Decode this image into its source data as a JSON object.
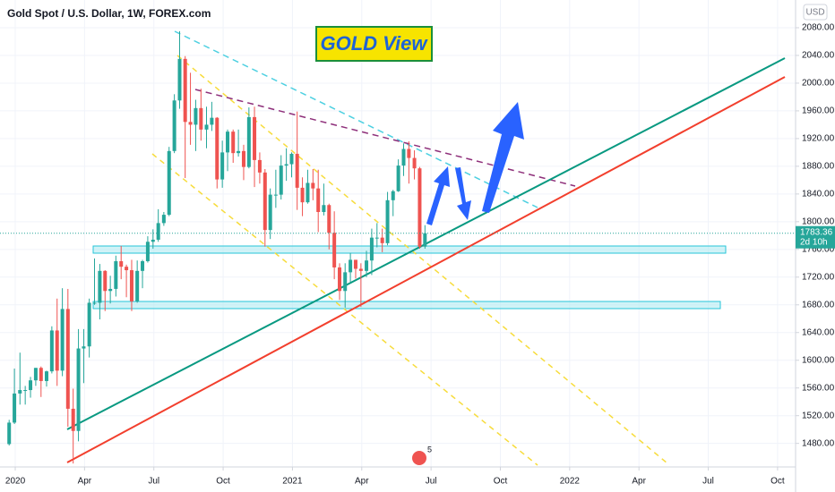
{
  "chart_data": {
    "type": "candlestick",
    "title": "Gold Spot / U.S. Dollar, 1W, FOREX.com",
    "currency": "USD",
    "annotation": "GOLD View",
    "countdown": "2d 10h",
    "event_badge": "5",
    "up_color": "#26a69a",
    "down_color": "#ef5350",
    "grid": true,
    "xlim": [
      2019.945,
      2022.815
    ],
    "ylim": [
      1446,
      2120
    ],
    "xticks": [
      2020,
      {
        "value": 2020.25,
        "label": "Apr"
      },
      {
        "value": 2020.5,
        "label": "Jul"
      },
      {
        "value": 2020.75,
        "label": "Oct"
      },
      2021,
      {
        "value": 2021.25,
        "label": "Apr"
      },
      {
        "value": 2021.5,
        "label": "Jul"
      },
      {
        "value": 2021.75,
        "label": "Oct"
      },
      2022,
      {
        "value": 2022.25,
        "label": "Apr"
      },
      {
        "value": 2022.5,
        "label": "Jul"
      },
      {
        "value": 2022.75,
        "label": "Oct"
      }
    ],
    "yticks": [
      {
        "value": 1480,
        "label": "1480.00"
      },
      {
        "value": 1520,
        "label": "1520.00"
      },
      {
        "value": 1560,
        "label": "1560.00"
      },
      {
        "value": 1600,
        "label": "1600.00"
      },
      {
        "value": 1640,
        "label": "1640.00"
      },
      {
        "value": 1680,
        "label": "1680.00"
      },
      {
        "value": 1720,
        "label": "1720.00"
      },
      {
        "value": 1760,
        "label": "1760.00"
      },
      {
        "value": 1800,
        "label": "1800.00"
      },
      {
        "value": 1840,
        "label": "1840.00"
      },
      {
        "value": 1880,
        "label": "1880.00"
      },
      {
        "value": 1920,
        "label": "1920.00"
      },
      {
        "value": 1960,
        "label": "1960.00"
      },
      {
        "value": 2000,
        "label": "2000.00"
      },
      {
        "value": 2040,
        "label": "2040.00"
      },
      {
        "value": 2080,
        "label": "2080.00"
      }
    ],
    "x": [
      2019.978,
      2019.997,
      2020.017,
      2020.036,
      2020.055,
      2020.074,
      2020.093,
      2020.113,
      2020.132,
      2020.151,
      2020.17,
      2020.19,
      2020.209,
      2020.228,
      2020.247,
      2020.267,
      2020.286,
      2020.305,
      2020.324,
      2020.343,
      2020.363,
      2020.382,
      2020.401,
      2020.42,
      2020.44,
      2020.459,
      2020.478,
      2020.497,
      2020.516,
      2020.536,
      2020.555,
      2020.574,
      2020.593,
      2020.613,
      2020.632,
      2020.651,
      2020.67,
      2020.69,
      2020.709,
      2020.728,
      2020.747,
      2020.766,
      2020.786,
      2020.805,
      2020.824,
      2020.843,
      2020.863,
      2020.882,
      2020.901,
      2020.92,
      2020.94,
      2020.959,
      2020.978,
      2020.997,
      2021.017,
      2021.036,
      2021.055,
      2021.074,
      2021.093,
      2021.113,
      2021.132,
      2021.151,
      2021.17,
      2021.19,
      2021.209,
      2021.228,
      2021.247,
      2021.267,
      2021.286,
      2021.305,
      2021.324,
      2021.343,
      2021.363,
      2021.382,
      2021.401,
      2021.42,
      2021.44,
      2021.459,
      2021.478
    ],
    "open": [
      1479,
      1510,
      1552,
      1557,
      1557,
      1571,
      1589,
      1570,
      1584,
      1643,
      1585,
      1674,
      1530,
      1498,
      1617,
      1620,
      1683,
      1683,
      1729,
      1700,
      1703,
      1743,
      1735,
      1730,
      1685,
      1729,
      1743,
      1771,
      1774,
      1798,
      1810,
      1902,
      1975,
      2035,
      1944,
      1940,
      1964,
      1933,
      1940,
      1950,
      1861,
      1900,
      1930,
      1899,
      1902,
      1879,
      1951,
      1889,
      1871,
      1788,
      1839,
      1839,
      1881,
      1883,
      1898,
      1849,
      1828,
      1856,
      1848,
      1814,
      1824,
      1784,
      1734,
      1700,
      1727,
      1745,
      1732,
      1729,
      1744,
      1777,
      1777,
      1769,
      1831,
      1844,
      1881,
      1905,
      1892,
      1877,
      1764
    ],
    "high": [
      1514,
      1588,
      1611,
      1563,
      1576,
      1589,
      1591,
      1585,
      1649,
      1689,
      1704,
      1703,
      1559,
      1645,
      1645,
      1689,
      1747,
      1739,
      1730,
      1722,
      1751,
      1765,
      1738,
      1745,
      1744,
      1745,
      1779,
      1789,
      1818,
      1814,
      1908,
      1984,
      2075,
      2039,
      2015,
      1976,
      1992,
      1966,
      1973,
      1951,
      1917,
      1933,
      1933,
      1933,
      1911,
      1965,
      1966,
      1900,
      1876,
      1848,
      1875,
      1896,
      1906,
      1900,
      1959,
      1864,
      1875,
      1876,
      1875,
      1855,
      1826,
      1815,
      1740,
      1740,
      1755,
      1745,
      1740,
      1758,
      1790,
      1798,
      1790,
      1843,
      1846,
      1890,
      1913,
      1916,
      1903,
      1879,
      1795
    ],
    "low": [
      1477,
      1508,
      1536,
      1536,
      1546,
      1563,
      1547,
      1562,
      1581,
      1563,
      1577,
      1504,
      1451,
      1483,
      1567,
      1604,
      1680,
      1659,
      1671,
      1682,
      1692,
      1717,
      1691,
      1671,
      1683,
      1704,
      1741,
      1761,
      1771,
      1794,
      1808,
      1899,
      1963,
      1863,
      1911,
      1902,
      1917,
      1906,
      1931,
      1848,
      1849,
      1873,
      1885,
      1894,
      1860,
      1877,
      1850,
      1855,
      1764,
      1775,
      1820,
      1832,
      1859,
      1864,
      1817,
      1808,
      1826,
      1831,
      1785,
      1809,
      1760,
      1717,
      1687,
      1676,
      1713,
      1718,
      1677,
      1720,
      1723,
      1763,
      1756,
      1766,
      1808,
      1843,
      1866,
      1855,
      1861,
      1761,
      1761
    ],
    "close": [
      1510,
      1552,
      1557,
      1557,
      1571,
      1589,
      1570,
      1584,
      1643,
      1585,
      1674,
      1530,
      1498,
      1617,
      1620,
      1683,
      1683,
      1729,
      1700,
      1703,
      1743,
      1735,
      1730,
      1685,
      1729,
      1743,
      1771,
      1774,
      1798,
      1810,
      1902,
      1975,
      2035,
      1944,
      1940,
      1964,
      1933,
      1940,
      1950,
      1861,
      1900,
      1930,
      1899,
      1902,
      1879,
      1951,
      1889,
      1871,
      1788,
      1839,
      1839,
      1881,
      1883,
      1898,
      1849,
      1828,
      1856,
      1848,
      1814,
      1824,
      1784,
      1734,
      1700,
      1727,
      1745,
      1732,
      1729,
      1744,
      1777,
      1777,
      1769,
      1831,
      1844,
      1881,
      1905,
      1892,
      1877,
      1764,
      1783.36
    ]
  }
}
